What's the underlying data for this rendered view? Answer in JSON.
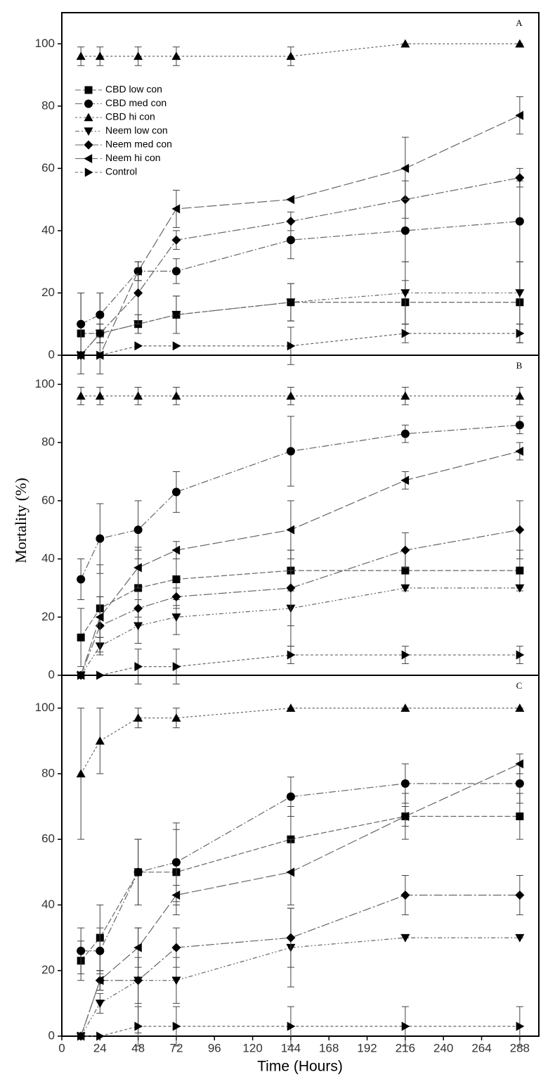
{
  "chart_data": [
    {
      "type": "line",
      "label": "A",
      "color": "#000000",
      "x": [
        12,
        24,
        48,
        72,
        144,
        216,
        288
      ],
      "xlim": [
        0,
        300
      ],
      "ylim": [
        0,
        110
      ],
      "yticks": [
        0,
        20,
        40,
        60,
        80,
        100
      ],
      "series": [
        {
          "name": "CBD low con",
          "values": [
            7,
            7,
            10,
            13,
            17,
            17,
            17
          ],
          "errors": [
            13,
            13,
            3,
            6,
            6,
            7,
            13
          ]
        },
        {
          "name": "CBD med con",
          "values": [
            10,
            13,
            27,
            27,
            37,
            40,
            43
          ],
          "errors": [
            10,
            7,
            3,
            4,
            6,
            10,
            13
          ]
        },
        {
          "name": "CBD hi con",
          "values": [
            96,
            96,
            96,
            96,
            96,
            100,
            100
          ],
          "errors": [
            3,
            3,
            3,
            3,
            3,
            0,
            0
          ]
        },
        {
          "name": "Neem low con",
          "values": [
            0,
            7,
            10,
            13,
            17,
            20,
            20
          ],
          "errors": [
            0,
            3,
            3,
            6,
            6,
            10,
            10
          ]
        },
        {
          "name": "Neem med con",
          "values": [
            0,
            7,
            20,
            37,
            43,
            50,
            57
          ],
          "errors": [
            0,
            3,
            10,
            3,
            3,
            6,
            3
          ]
        },
        {
          "name": "Neem hi con",
          "values": [
            0,
            0,
            27,
            47,
            50,
            60,
            77
          ],
          "errors": [
            0,
            0,
            3,
            6,
            0,
            10,
            6
          ]
        },
        {
          "name": "Control",
          "values": [
            0,
            0,
            3,
            3,
            3,
            7,
            7
          ],
          "errors": [
            0,
            0,
            0,
            0,
            6,
            3,
            3
          ]
        }
      ]
    },
    {
      "type": "line",
      "label": "B",
      "color": "#000000",
      "ylabel": "Mortality (%)",
      "x": [
        12,
        24,
        48,
        72,
        144,
        216,
        288
      ],
      "xlim": [
        0,
        300
      ],
      "ylim": [
        0,
        110
      ],
      "yticks": [
        0,
        20,
        40,
        60,
        80,
        100
      ],
      "series": [
        {
          "values": [
            13,
            23,
            30,
            33,
            36,
            36,
            36
          ],
          "errors": [
            10,
            15,
            13,
            10,
            7,
            7,
            7
          ]
        },
        {
          "values": [
            33,
            47,
            50,
            63,
            77,
            83,
            86
          ],
          "errors": [
            7,
            12,
            10,
            7,
            12,
            3,
            3
          ]
        },
        {
          "values": [
            96,
            96,
            96,
            96,
            96,
            96,
            96
          ],
          "errors": [
            3,
            3,
            3,
            3,
            3,
            3,
            3
          ]
        },
        {
          "values": [
            0,
            10,
            17,
            20,
            23,
            30,
            30
          ],
          "errors": [
            0,
            3,
            6,
            6,
            13,
            0,
            0
          ]
        },
        {
          "values": [
            0,
            17,
            23,
            27,
            30,
            43,
            50
          ],
          "errors": [
            0,
            10,
            3,
            3,
            13,
            6,
            10
          ]
        },
        {
          "values": [
            0,
            20,
            37,
            43,
            50,
            67,
            77
          ],
          "errors": [
            0,
            7,
            7,
            3,
            10,
            3,
            3
          ]
        },
        {
          "values": [
            0,
            0,
            3,
            3,
            7,
            7,
            7
          ],
          "errors": [
            0,
            0,
            6,
            6,
            3,
            3,
            3
          ]
        }
      ]
    },
    {
      "type": "line",
      "label": "C",
      "color": "#000000",
      "xlabel": "Time (Hours)",
      "x": [
        12,
        24,
        48,
        72,
        144,
        216,
        288
      ],
      "xlim": [
        0,
        300
      ],
      "xticks": [
        0,
        24,
        48,
        72,
        96,
        120,
        144,
        168,
        192,
        216,
        240,
        264,
        288
      ],
      "ylim": [
        0,
        110
      ],
      "yticks": [
        0,
        20,
        40,
        60,
        80,
        100
      ],
      "series": [
        {
          "values": [
            23,
            30,
            50,
            50,
            60,
            67,
            67
          ],
          "errors": [
            6,
            10,
            10,
            13,
            10,
            7,
            7
          ]
        },
        {
          "values": [
            26,
            26,
            50,
            53,
            73,
            77,
            77
          ],
          "errors": [
            7,
            7,
            10,
            12,
            6,
            6,
            6
          ]
        },
        {
          "values": [
            80,
            90,
            97,
            97,
            100,
            100,
            100
          ],
          "errors": [
            20,
            10,
            3,
            3,
            0,
            0,
            0
          ]
        },
        {
          "values": [
            0,
            10,
            17,
            17,
            27,
            30,
            30
          ],
          "errors": [
            0,
            3,
            7,
            7,
            12,
            0,
            0
          ]
        },
        {
          "values": [
            0,
            17,
            17,
            27,
            30,
            43,
            43
          ],
          "errors": [
            0,
            3,
            16,
            6,
            9,
            6,
            6
          ]
        },
        {
          "values": [
            0,
            17,
            27,
            43,
            50,
            67,
            83
          ],
          "errors": [
            0,
            3,
            6,
            3,
            10,
            3,
            3
          ]
        },
        {
          "values": [
            0,
            0,
            3,
            3,
            3,
            3,
            3
          ],
          "errors": [
            0,
            0,
            6,
            6,
            6,
            6,
            6
          ]
        }
      ]
    }
  ]
}
